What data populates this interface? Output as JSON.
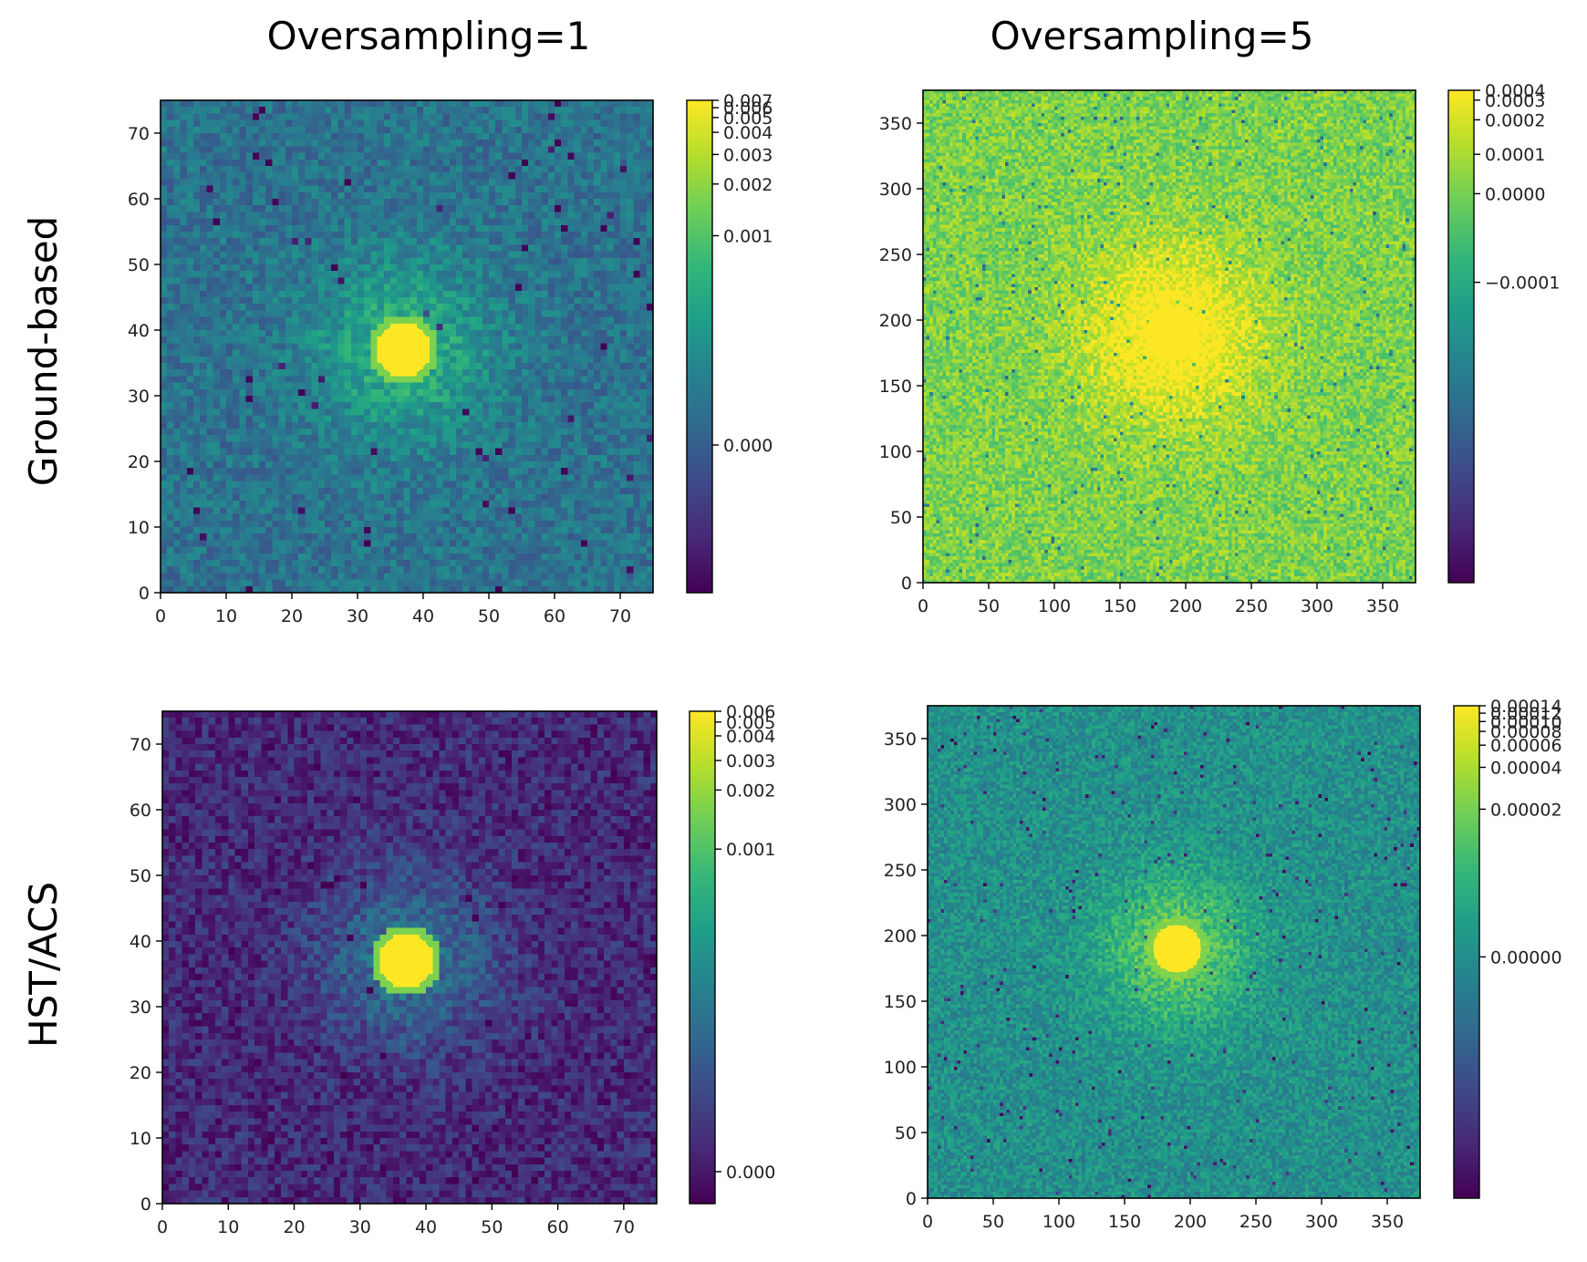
{
  "figure": {
    "column_titles": [
      "Oversampling=1",
      "Oversampling=5"
    ],
    "row_labels": [
      "Ground-based",
      "HST/ACS"
    ]
  },
  "colors": {
    "viridis": [
      "#440154",
      "#482878",
      "#3e4989",
      "#31688e",
      "#26828e",
      "#1f9e89",
      "#35b779",
      "#6ece58",
      "#b5de2b",
      "#fde725"
    ]
  },
  "chart_data": [
    {
      "type": "heatmap",
      "row": "Ground-based",
      "column": "Oversampling=1",
      "xlim": [
        0,
        75
      ],
      "ylim": [
        0,
        75
      ],
      "xticks": [
        0,
        10,
        20,
        30,
        40,
        50,
        60,
        70
      ],
      "yticks": [
        0,
        10,
        20,
        30,
        40,
        50,
        60,
        70
      ],
      "source": {
        "x": 37,
        "y": 37,
        "radius": 4
      },
      "background_level": 0.38,
      "colorbar_ticks": [
        "0.007",
        "0.006",
        "0.005",
        "0.004",
        "0.003",
        "0.002",
        "0.001",
        "0.000"
      ],
      "colorbar_tick_fractions": [
        1.0,
        0.985,
        0.965,
        0.935,
        0.89,
        0.83,
        0.725,
        0.3
      ]
    },
    {
      "type": "heatmap",
      "row": "Ground-based",
      "column": "Oversampling=5",
      "xlim": [
        0,
        375
      ],
      "ylim": [
        0,
        375
      ],
      "xticks": [
        0,
        50,
        100,
        150,
        200,
        250,
        300,
        350
      ],
      "yticks": [
        0,
        50,
        100,
        150,
        200,
        250,
        300,
        350
      ],
      "source": {
        "x": 190,
        "y": 190,
        "radius": 20
      },
      "background_level": 0.8,
      "colorbar_ticks": [
        "0.0004",
        "0.0003",
        "0.0002",
        "0.0001",
        "0.0000",
        "−0.0001"
      ],
      "colorbar_tick_fractions": [
        1.0,
        0.98,
        0.94,
        0.87,
        0.79,
        0.61
      ]
    },
    {
      "type": "heatmap",
      "row": "HST/ACS",
      "column": "Oversampling=1",
      "xlim": [
        0,
        75
      ],
      "ylim": [
        0,
        75
      ],
      "xticks": [
        0,
        10,
        20,
        30,
        40,
        50,
        60,
        70
      ],
      "yticks": [
        0,
        10,
        20,
        30,
        40,
        50,
        60,
        70
      ],
      "source": {
        "x": 37,
        "y": 37,
        "radius": 4
      },
      "background_level": 0.12,
      "colorbar_ticks": [
        "0.006",
        "0.005",
        "0.004",
        "0.003",
        "0.002",
        "0.001",
        "0.000"
      ],
      "colorbar_tick_fractions": [
        1.0,
        0.978,
        0.95,
        0.9,
        0.84,
        0.72,
        0.065
      ]
    },
    {
      "type": "heatmap",
      "row": "HST/ACS",
      "column": "Oversampling=5",
      "xlim": [
        0,
        375
      ],
      "ylim": [
        0,
        375
      ],
      "xticks": [
        0,
        50,
        100,
        150,
        200,
        250,
        300,
        350
      ],
      "yticks": [
        0,
        50,
        100,
        150,
        200,
        250,
        300,
        350
      ],
      "source": {
        "x": 190,
        "y": 190,
        "radius": 18
      },
      "background_level": 0.5,
      "colorbar_ticks": [
        "0.00014",
        "0.00012",
        "0.00010",
        "0.00008",
        "0.00006",
        "0.00004",
        "0.00002",
        "0.00000"
      ],
      "colorbar_tick_fractions": [
        1.0,
        0.985,
        0.968,
        0.948,
        0.92,
        0.875,
        0.79,
        0.49
      ]
    }
  ]
}
